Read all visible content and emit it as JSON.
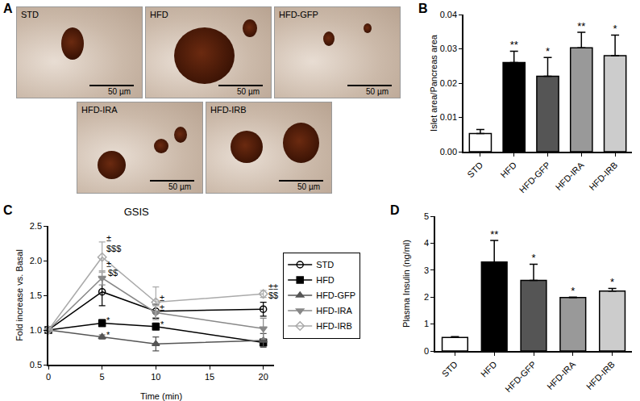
{
  "micrographs": {
    "panel_label": "A",
    "images": [
      {
        "label": "STD",
        "scale_bar": "50 µm"
      },
      {
        "label": "HFD",
        "scale_bar": "50 µm"
      },
      {
        "label": "HFD-GFP",
        "scale_bar": "50 µm"
      },
      {
        "label": "HFD-IRA",
        "scale_bar": "50 µm"
      },
      {
        "label": "HFD-IRB",
        "scale_bar": "50 µm"
      }
    ]
  },
  "chart_data": [
    {
      "panel_label": "B",
      "type": "bar",
      "y_label": "Islet area/Pancreas area",
      "categories": [
        "STD",
        "HFD",
        "HFD-GFP",
        "HFD-IRA",
        "HFD-IRB"
      ],
      "values": [
        0.0053,
        0.026,
        0.022,
        0.0303,
        0.028
      ],
      "errors": [
        0.0012,
        0.0033,
        0.0055,
        0.0045,
        0.006
      ],
      "significance": [
        null,
        "**",
        "*",
        "**",
        "*"
      ],
      "colors": [
        "#ffffff",
        "#000000",
        "#555555",
        "#999999",
        "#cccccc"
      ],
      "ylim": [
        0,
        0.04
      ],
      "yticks": [
        {
          "value": 0,
          "label": "0.00"
        },
        0.01,
        0.02,
        0.03,
        0.04
      ]
    },
    {
      "panel_label": "C",
      "type": "line",
      "title": "GSIS",
      "x_label": "Time (min)",
      "y_label": "Fold increase vs. Basal",
      "x": [
        0,
        5,
        10,
        20
      ],
      "xlim": [
        0,
        21
      ],
      "xticks": [
        0,
        5,
        10,
        15,
        20
      ],
      "ylim": [
        0.5,
        2.5
      ],
      "yticks": [
        0.5,
        {
          "value": 1,
          "label": "1.0"
        },
        1.5,
        {
          "value": 2,
          "label": "2.0"
        },
        2.5
      ],
      "legend": "right",
      "series": [
        {
          "name": "STD",
          "color": "#000000",
          "marker": "circle-open",
          "values": [
            1,
            1.55,
            1.27,
            1.3
          ],
          "errors": [
            0,
            0.2,
            0.1,
            0.1
          ]
        },
        {
          "name": "HFD",
          "color": "#000000",
          "marker": "square",
          "values": [
            1,
            1.1,
            1.05,
            0.82
          ],
          "errors": [
            0,
            0.05,
            0.05,
            0.05
          ]
        },
        {
          "name": "HFD-GFP",
          "color": "#555555",
          "marker": "triangle-up",
          "values": [
            1,
            0.9,
            0.8,
            0.85
          ],
          "errors": [
            0,
            0.03,
            0.1,
            0.1
          ]
        },
        {
          "name": "HFD-IRA",
          "color": "#888888",
          "marker": "triangle-down",
          "values": [
            1,
            1.75,
            1.25,
            1.02
          ],
          "errors": [
            0,
            0.1,
            0.1,
            0.15
          ]
        },
        {
          "name": "HFD-IRB",
          "color": "#aaaaaa",
          "marker": "diamond-open",
          "values": [
            1,
            2.05,
            1.4,
            1.52
          ],
          "errors": [
            0,
            0.22,
            0.22,
            0.05
          ]
        }
      ],
      "annotations": [
        {
          "x": 5.6,
          "y": 2.33,
          "text": "±"
        },
        {
          "x": 6.1,
          "y": 2.18,
          "text": "$$$"
        },
        {
          "x": 5.6,
          "y": 1.95,
          "text": "±"
        },
        {
          "x": 6.0,
          "y": 1.82,
          "text": "$$"
        },
        {
          "x": 5.6,
          "y": 1.14,
          "text": "*"
        },
        {
          "x": 5.6,
          "y": 0.93,
          "text": "*"
        },
        {
          "x": 10.6,
          "y": 1.47,
          "text": "±"
        },
        {
          "x": 10.6,
          "y": 1.32,
          "text": "±"
        },
        {
          "x": 10.6,
          "y": 1.08,
          "text": "*"
        },
        {
          "x": 20.9,
          "y": 1.63,
          "text": "±±"
        },
        {
          "x": 20.9,
          "y": 1.5,
          "text": "$$"
        }
      ]
    },
    {
      "panel_label": "D",
      "type": "bar",
      "y_label": "Plasma Insulin (ng/ml)",
      "categories": [
        "STD",
        "HFD",
        "HFD-GFP",
        "HFD-IRA",
        "HFD-IRB"
      ],
      "values": [
        0.5,
        3.3,
        2.62,
        1.98,
        2.22
      ],
      "errors": [
        0.03,
        0.8,
        0.6,
        0.02,
        0.1
      ],
      "significance": [
        null,
        "**",
        "*",
        "*",
        "*"
      ],
      "colors": [
        "#ffffff",
        "#000000",
        "#555555",
        "#999999",
        "#cccccc"
      ],
      "ylim": [
        0,
        5
      ],
      "yticks": [
        0,
        1,
        2,
        3,
        4,
        5
      ]
    }
  ]
}
